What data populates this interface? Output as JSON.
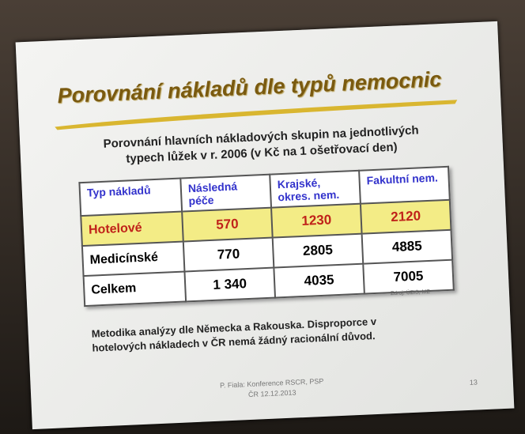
{
  "slide": {
    "title": "Porovnání nákladů dle typů nemocnic",
    "subtitle_lines": [
      "Porovnání hlavních nákladových skupin na jednotlivých",
      "typech lůžek v r. 2006 (v Kč na 1 ošetřovací den)"
    ],
    "table": {
      "header": [
        "Typ nákladů",
        "Následná péče",
        "Krajské, okres. nem.",
        "Fakultní nem."
      ],
      "rows": [
        [
          "Hotelové",
          "570",
          "1230",
          "2120"
        ],
        [
          "Medicínské",
          "770",
          "2805",
          "4885"
        ],
        [
          "Celkem",
          "1 340",
          "4035",
          "7005"
        ]
      ]
    },
    "source": "Zdroj: ÚZIS, MZ",
    "note_lines": [
      "Metodika analýzy dle Německa a Rakouska. Disproporce v",
      "hotelových nákladech v ČR nemá žádný racionální důvod."
    ],
    "footer_lines": [
      "P. Fiala: Konference RSCR, PSP",
      "ČR 12.12.2013"
    ],
    "page_number": "13"
  }
}
